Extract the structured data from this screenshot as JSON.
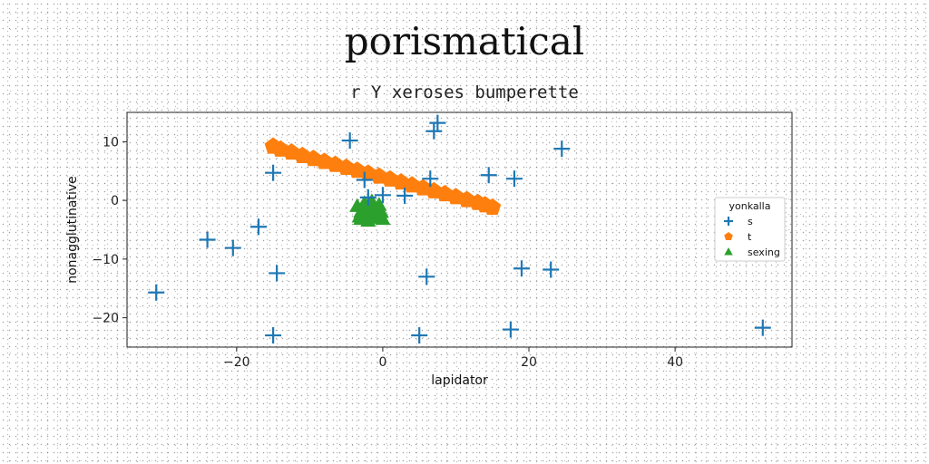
{
  "title": "porismatical",
  "subtitle": "r Y xeroses bumperette",
  "colors": {
    "s": "#1f77b4",
    "t": "#ff7f0e",
    "sexing": "#2ca02c",
    "axis": "#222222"
  },
  "chart_data": {
    "type": "scatter",
    "title": "porismatical",
    "subtitle": "r Y xeroses bumperette",
    "xlabel": "lapidator",
    "ylabel": "nonagglutinative",
    "xlim": [
      -35,
      56
    ],
    "ylim": [
      -25,
      15
    ],
    "xticks": [
      -20,
      0,
      20,
      40
    ],
    "yticks": [
      10,
      0,
      -10,
      -20
    ],
    "xtick_labels": [
      "−20",
      "0",
      "20",
      "40"
    ],
    "ytick_labels": [
      "10",
      "0",
      "−10",
      "−20"
    ],
    "grid": false,
    "legend": {
      "title": "yonkalla",
      "placement": "right",
      "entries": [
        "s",
        "t",
        "sexing"
      ]
    },
    "series": [
      {
        "name": "s",
        "marker": "plus",
        "x": [
          -31,
          -24,
          -20.5,
          -17,
          -15,
          -14.5,
          -15,
          -4.5,
          -2.5,
          -2,
          0,
          3,
          5,
          6,
          6.5,
          7,
          7.5,
          14.5,
          18,
          19,
          23,
          24.5,
          17.5,
          52
        ],
        "y": [
          -15.7,
          -6.7,
          -8.1,
          -4.5,
          4.7,
          -12.4,
          -23,
          10.2,
          3.5,
          0.5,
          0.9,
          0.8,
          -23,
          -13,
          3.7,
          11.8,
          13.2,
          4.3,
          3.7,
          -11.6,
          -11.8,
          8.8,
          -22,
          -21.7
        ]
      },
      {
        "name": "t",
        "marker": "pentagon",
        "x": [
          -15,
          -14,
          -12.5,
          -11,
          -9.5,
          -8,
          -6.5,
          -5,
          -3.5,
          -2,
          -0.5,
          1,
          2.5,
          4,
          5.5,
          7,
          8.5,
          10,
          11.5,
          13,
          14,
          15
        ],
        "y": [
          9.2,
          8.7,
          8.2,
          7.6,
          7.1,
          6.6,
          6.1,
          5.6,
          5.1,
          4.6,
          4.1,
          3.6,
          3.1,
          2.6,
          2.1,
          1.6,
          1.1,
          0.6,
          0.1,
          -0.4,
          -0.8,
          -1.2
        ]
      },
      {
        "name": "sexing",
        "marker": "triangle",
        "x": [
          -3.5,
          -3,
          -2.5,
          -2,
          -1.5,
          -1,
          -0.5,
          -3,
          -2,
          -1,
          0,
          -2.5,
          -1.5,
          -0.5,
          -3.2,
          -2.2,
          -1.2,
          -0.2
        ],
        "y": [
          -1,
          -2,
          -1.5,
          -2.5,
          -1,
          -2,
          -1.5,
          -3.2,
          -3.5,
          -3,
          -3.2,
          -0.5,
          -0.2,
          -0.8,
          -2.8,
          -1.2,
          -2.8,
          -2
        ]
      }
    ]
  }
}
